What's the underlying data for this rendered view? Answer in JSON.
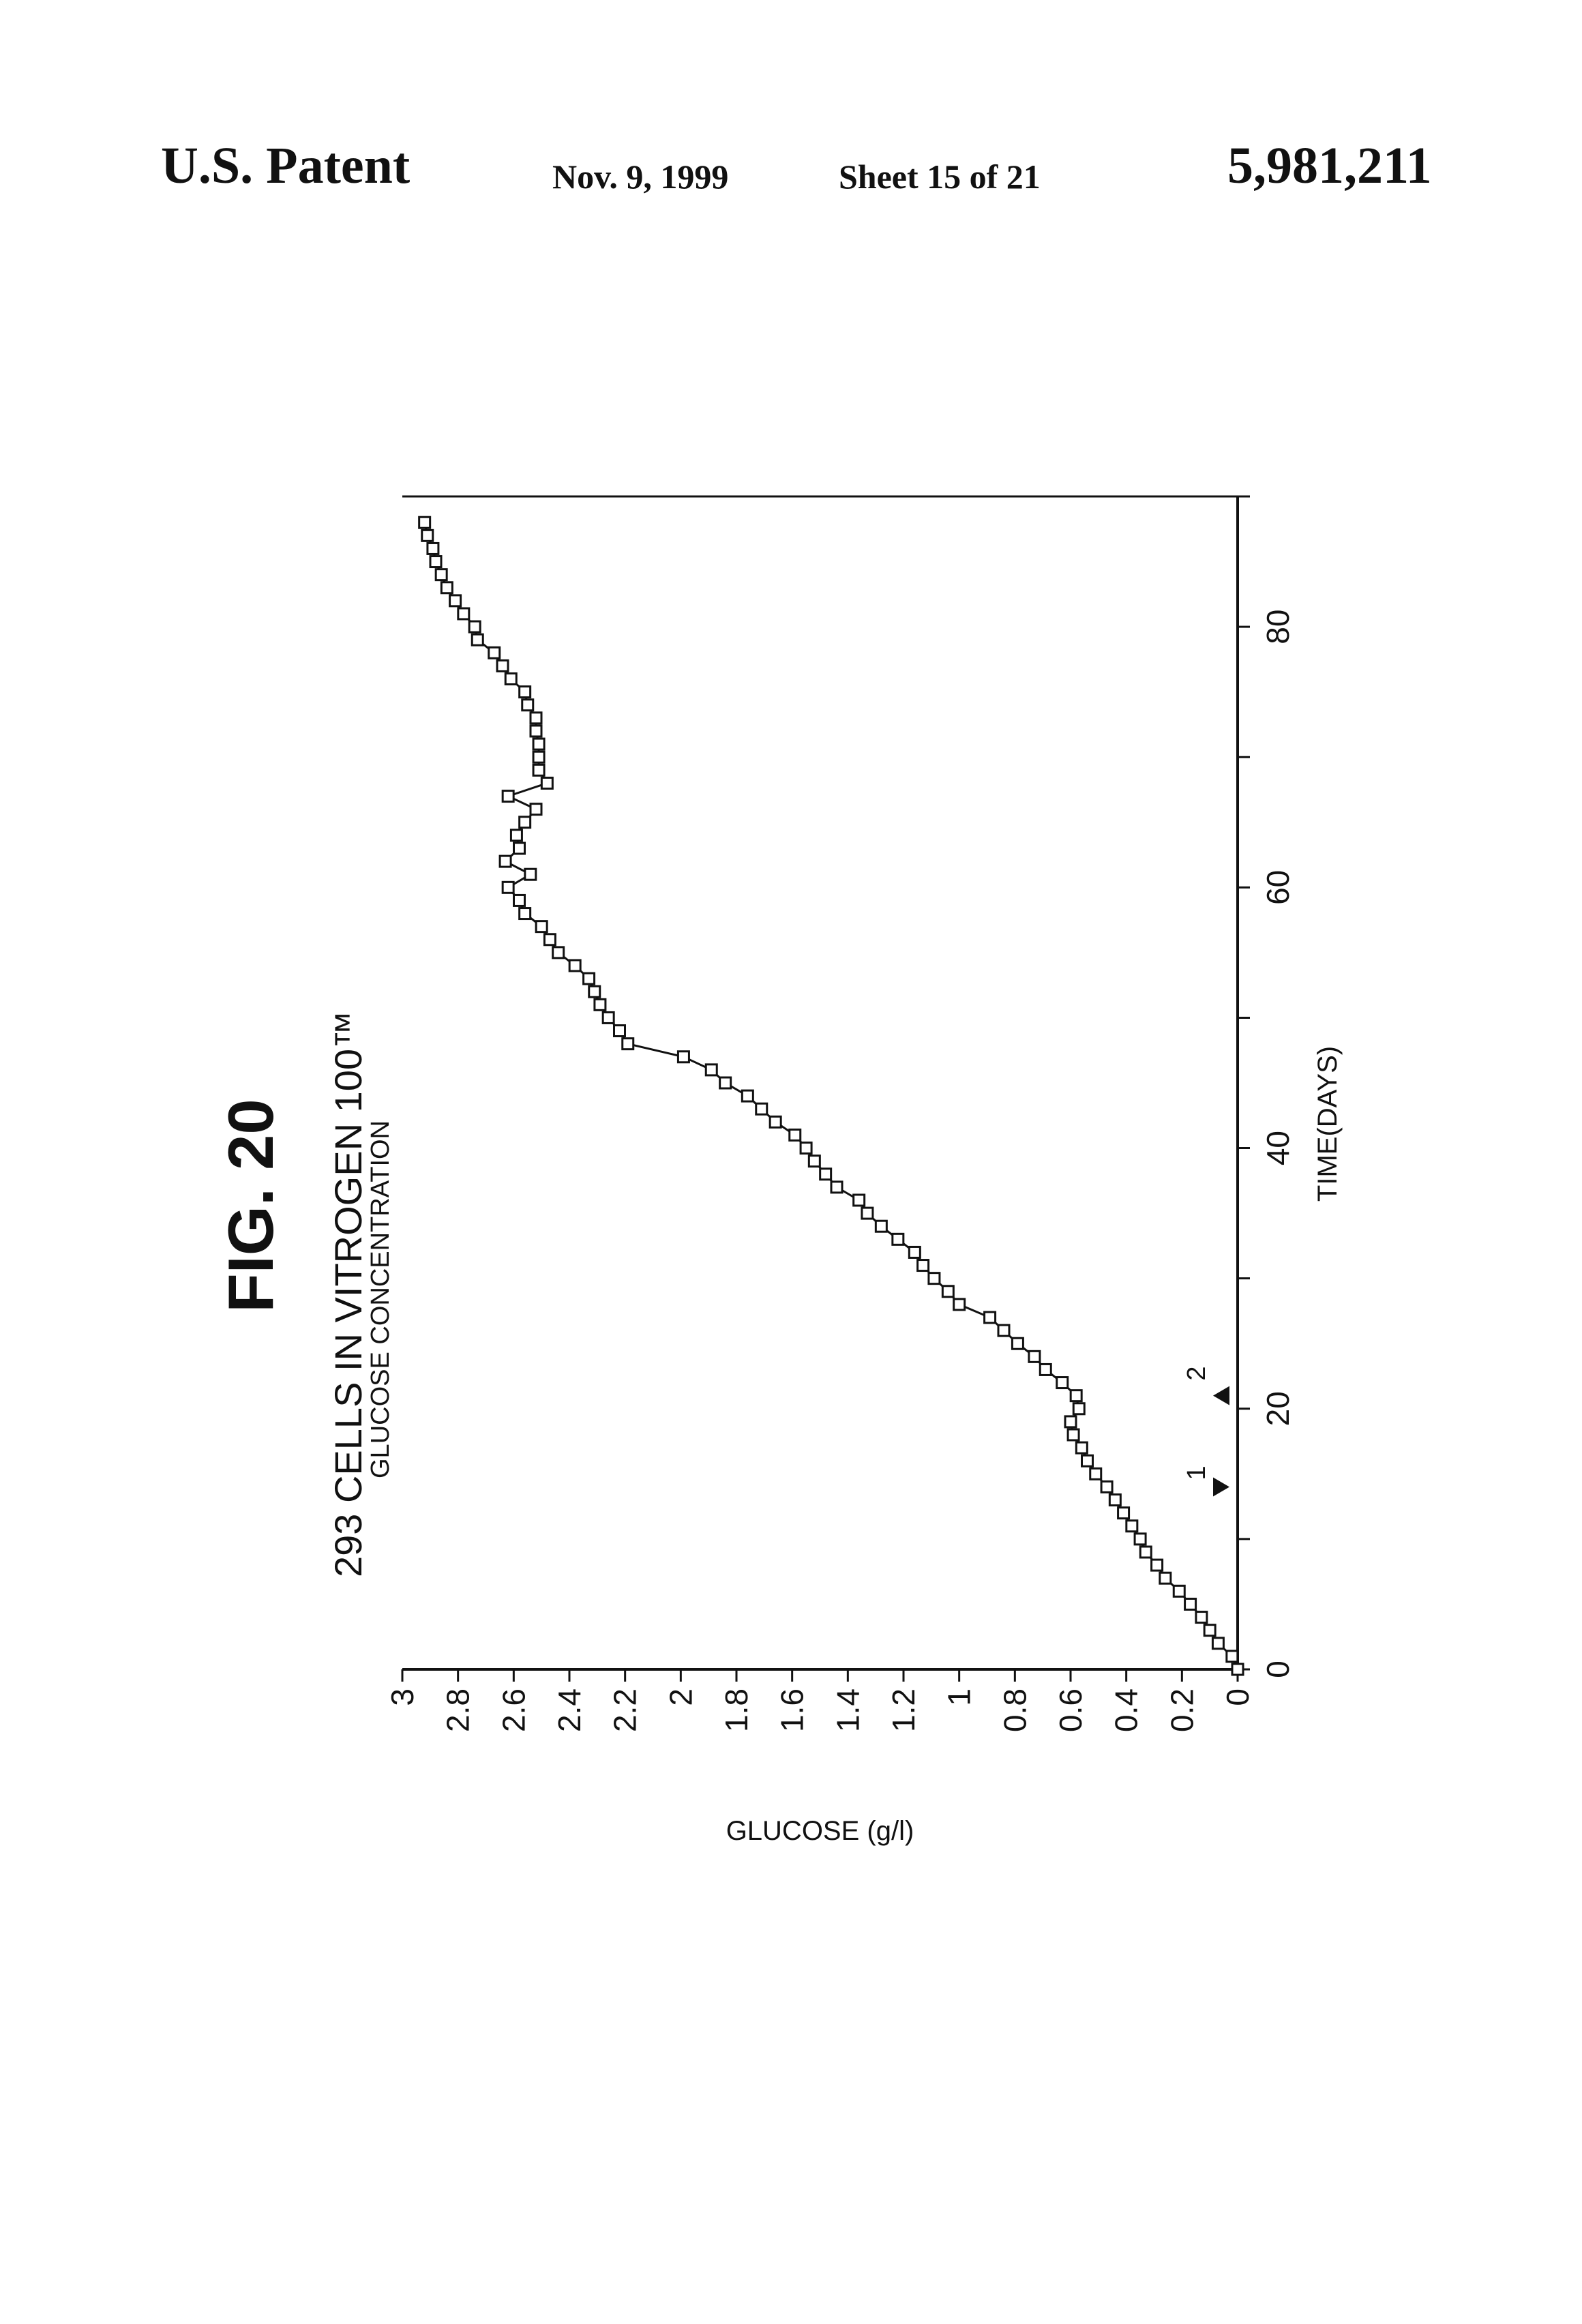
{
  "header": {
    "left": "U.S. Patent",
    "date": "Nov. 9, 1999",
    "sheet": "Sheet 15 of 21",
    "number": "5,981,211"
  },
  "figure": {
    "label": "FIG. 20",
    "title": "293  CELLS  IN  VITROGEN  100™",
    "subtitle": "GLUCOSE CONCENTRATION"
  },
  "colors": {
    "ink": "#111111",
    "background": "#ffffff"
  },
  "chart_data": {
    "type": "line",
    "orientation": "rotated-90-ccw",
    "marker": "open-square",
    "xlabel": "TIME(DAYS)",
    "ylabel": "GLUCOSE (g/l)",
    "xlim": [
      0,
      90
    ],
    "ylim": [
      0,
      3
    ],
    "xticks": [
      0,
      20,
      40,
      60,
      80
    ],
    "xtick_labels": [
      "0",
      "20",
      "40",
      "60",
      "80"
    ],
    "yticks": [
      0,
      0.2,
      0.4,
      0.6,
      0.8,
      1,
      1.2,
      1.4,
      1.6,
      1.8,
      2,
      2.2,
      2.4,
      2.6,
      2.8,
      3
    ],
    "ytick_labels": [
      "0",
      "0.2",
      "0.4",
      "0.6",
      "0.8",
      "1",
      "1.2",
      "1.4",
      "1.6",
      "1.8",
      "2",
      "2.2",
      "2.4",
      "2.6",
      "2.8",
      "3"
    ],
    "grid": false,
    "annotations": [
      {
        "label": "1",
        "x": 14,
        "symbol": "down-triangle"
      },
      {
        "label": "2",
        "x": 21,
        "symbol": "up-triangle"
      }
    ],
    "series": [
      {
        "x": [
          0,
          1,
          2,
          3,
          4,
          5,
          6,
          7,
          8,
          9,
          10,
          11,
          12,
          13,
          14,
          15,
          16,
          17,
          18,
          19,
          20,
          21,
          22,
          23,
          24,
          25,
          26,
          27,
          28,
          29,
          30,
          31,
          32,
          33,
          34,
          35,
          36,
          37,
          38,
          39,
          40,
          41,
          42,
          43,
          44,
          45,
          46,
          47,
          48,
          49,
          50,
          51,
          52,
          53,
          54,
          55,
          56,
          57,
          58,
          59,
          60,
          61,
          62,
          63,
          64,
          65,
          66,
          67,
          68,
          69,
          70,
          71,
          72,
          73,
          74,
          75,
          76,
          77,
          78,
          79,
          80,
          81,
          82,
          83,
          84,
          85,
          86,
          87,
          88
        ],
        "y": [
          0,
          0.02,
          0.07,
          0.1,
          0.13,
          0.17,
          0.21,
          0.26,
          0.29,
          0.33,
          0.35,
          0.38,
          0.41,
          0.44,
          0.47,
          0.51,
          0.54,
          0.56,
          0.59,
          0.6,
          0.57,
          0.58,
          0.63,
          0.69,
          0.73,
          0.79,
          0.84,
          0.89,
          1.0,
          1.04,
          1.09,
          1.13,
          1.16,
          1.22,
          1.28,
          1.33,
          1.36,
          1.44,
          1.48,
          1.52,
          1.55,
          1.59,
          1.66,
          1.71,
          1.76,
          1.84,
          1.89,
          1.99,
          2.19,
          2.22,
          2.26,
          2.29,
          2.31,
          2.33,
          2.38,
          2.44,
          2.47,
          2.5,
          2.56,
          2.58,
          2.62,
          2.54,
          2.63,
          2.58,
          2.59,
          2.56,
          2.52,
          2.62,
          2.48,
          2.51,
          2.51,
          2.51,
          2.52,
          2.52,
          2.55,
          2.56,
          2.61,
          2.64,
          2.67,
          2.73,
          2.74,
          2.78,
          2.81,
          2.84,
          2.86,
          2.88,
          2.89,
          2.91,
          2.92
        ]
      }
    ]
  }
}
